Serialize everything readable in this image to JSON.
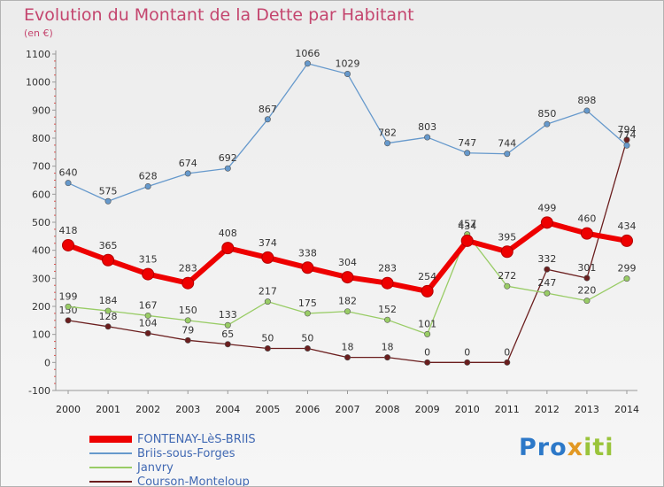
{
  "header": {
    "title": "Evolution du Montant de la Dette par Habitant",
    "unit": "(en €)"
  },
  "logo": {
    "part1": "Pro",
    "part2": "x",
    "part3": "iti"
  },
  "chart_data": {
    "type": "line",
    "title": "Evolution du Montant de la Dette par Habitant",
    "subtitle": "(en €)",
    "xlabel": "",
    "ylabel": "",
    "ylim": [
      -100,
      1100
    ],
    "yticks": [
      -100,
      0,
      100,
      200,
      300,
      400,
      500,
      600,
      700,
      800,
      900,
      1000,
      1100
    ],
    "x": [
      "2000",
      "2001",
      "2002",
      "2003",
      "2004",
      "2005",
      "2006",
      "2007",
      "2008",
      "2009",
      "2010",
      "2011",
      "2012",
      "2013",
      "2014"
    ],
    "grid": false,
    "legend_position": "bottom-left",
    "series": [
      {
        "name": "FONTENAY-LèS-BRIIS",
        "color": "#ee0000",
        "values": [
          418,
          365,
          315,
          283,
          408,
          374,
          338,
          304,
          283,
          254,
          434,
          395,
          499,
          460,
          434
        ]
      },
      {
        "name": "Briis-sous-Forges",
        "color": "#6699cc",
        "values": [
          640,
          575,
          628,
          674,
          692,
          867,
          1066,
          1029,
          782,
          803,
          747,
          744,
          850,
          898,
          774
        ]
      },
      {
        "name": "Janvry",
        "color": "#99cc66",
        "values": [
          199,
          184,
          167,
          150,
          133,
          217,
          175,
          182,
          152,
          101,
          457,
          272,
          247,
          220,
          299
        ]
      },
      {
        "name": "Courson-Monteloup",
        "color": "#6b1e1e",
        "values": [
          150,
          128,
          104,
          79,
          65,
          50,
          50,
          18,
          18,
          0,
          0,
          0,
          332,
          301,
          794
        ]
      }
    ]
  }
}
